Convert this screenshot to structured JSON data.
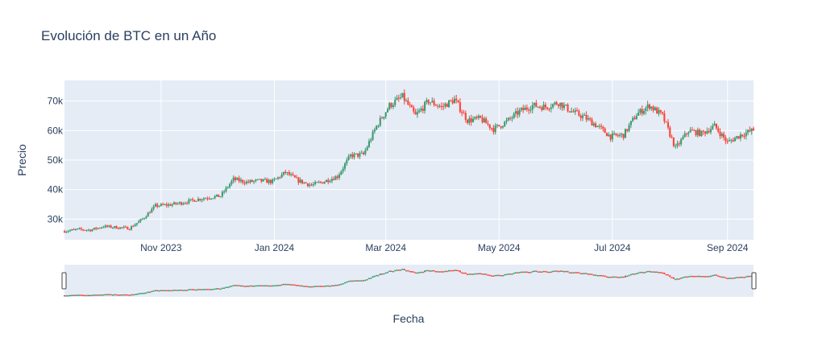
{
  "chart_data": {
    "type": "candlestick",
    "title": "Evolución de BTC en un Año",
    "xlabel": "Fecha",
    "ylabel": "Precio",
    "x_range": [
      "2023-09-10",
      "2024-09-15"
    ],
    "ylim": [
      23000,
      77000
    ],
    "x_ticks": [
      {
        "date": "2023-11-01",
        "label": "Nov 2023"
      },
      {
        "date": "2024-01-01",
        "label": "Jan 2024"
      },
      {
        "date": "2024-03-01",
        "label": "Mar 2024"
      },
      {
        "date": "2024-05-01",
        "label": "May 2024"
      },
      {
        "date": "2024-07-01",
        "label": "Jul 2024"
      },
      {
        "date": "2024-09-01",
        "label": "Sep 2024"
      }
    ],
    "y_ticks": [
      {
        "value": 30000,
        "label": "30k"
      },
      {
        "value": 40000,
        "label": "40k"
      },
      {
        "value": 50000,
        "label": "50k"
      },
      {
        "value": 60000,
        "label": "60k"
      },
      {
        "value": 70000,
        "label": "70k"
      }
    ],
    "close_series": [
      [
        "2023-09-10",
        25900
      ],
      [
        "2023-09-17",
        26500
      ],
      [
        "2023-09-24",
        26300
      ],
      [
        "2023-10-01",
        27500
      ],
      [
        "2023-10-08",
        27200
      ],
      [
        "2023-10-15",
        26900
      ],
      [
        "2023-10-22",
        30000
      ],
      [
        "2023-10-29",
        34500
      ],
      [
        "2023-11-05",
        34800
      ],
      [
        "2023-11-12",
        35500
      ],
      [
        "2023-11-19",
        36500
      ],
      [
        "2023-11-26",
        37300
      ],
      [
        "2023-12-03",
        37800
      ],
      [
        "2023-12-10",
        43500
      ],
      [
        "2023-12-17",
        42500
      ],
      [
        "2023-12-24",
        43000
      ],
      [
        "2023-12-31",
        42700
      ],
      [
        "2024-01-07",
        45800
      ],
      [
        "2024-01-14",
        43000
      ],
      [
        "2024-01-21",
        41500
      ],
      [
        "2024-01-28",
        42800
      ],
      [
        "2024-02-04",
        44500
      ],
      [
        "2024-02-11",
        51500
      ],
      [
        "2024-02-18",
        51900
      ],
      [
        "2024-02-25",
        61500
      ],
      [
        "2024-03-03",
        68500
      ],
      [
        "2024-03-10",
        71500
      ],
      [
        "2024-03-17",
        65000
      ],
      [
        "2024-03-24",
        70000
      ],
      [
        "2024-03-31",
        68000
      ],
      [
        "2024-04-07",
        70500
      ],
      [
        "2024-04-14",
        63500
      ],
      [
        "2024-04-21",
        64000
      ],
      [
        "2024-04-28",
        60500
      ],
      [
        "2024-05-05",
        63000
      ],
      [
        "2024-05-12",
        66500
      ],
      [
        "2024-05-19",
        68500
      ],
      [
        "2024-05-26",
        68000
      ],
      [
        "2024-06-02",
        69500
      ],
      [
        "2024-06-09",
        66500
      ],
      [
        "2024-06-16",
        64500
      ],
      [
        "2024-06-23",
        61500
      ],
      [
        "2024-06-30",
        58000
      ],
      [
        "2024-07-07",
        58500
      ],
      [
        "2024-07-14",
        65500
      ],
      [
        "2024-07-21",
        68500
      ],
      [
        "2024-07-28",
        65000
      ],
      [
        "2024-08-04",
        54000
      ],
      [
        "2024-08-11",
        60000
      ],
      [
        "2024-08-18",
        59000
      ],
      [
        "2024-08-25",
        61500
      ],
      [
        "2024-09-01",
        56000
      ],
      [
        "2024-09-08",
        58500
      ],
      [
        "2024-09-15",
        60200
      ]
    ],
    "colors": {
      "increasing": "#3d9970",
      "decreasing": "#ff4136",
      "plot_bg": "#e5ecf6",
      "grid": "#ffffff",
      "text": "#2a3f5f"
    },
    "rangeslider": true,
    "grid": true
  }
}
